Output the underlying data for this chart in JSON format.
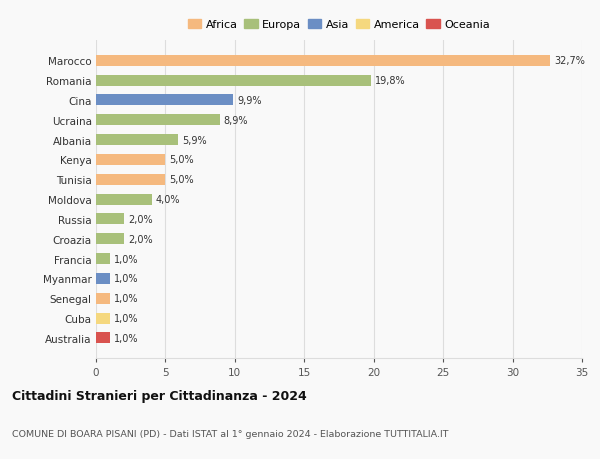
{
  "countries": [
    "Marocco",
    "Romania",
    "Cina",
    "Ucraina",
    "Albania",
    "Kenya",
    "Tunisia",
    "Moldova",
    "Russia",
    "Croazia",
    "Francia",
    "Myanmar",
    "Senegal",
    "Cuba",
    "Australia"
  ],
  "values": [
    32.7,
    19.8,
    9.9,
    8.9,
    5.9,
    5.0,
    5.0,
    4.0,
    2.0,
    2.0,
    1.0,
    1.0,
    1.0,
    1.0,
    1.0
  ],
  "labels": [
    "32,7%",
    "19,8%",
    "9,9%",
    "8,9%",
    "5,9%",
    "5,0%",
    "5,0%",
    "4,0%",
    "2,0%",
    "2,0%",
    "1,0%",
    "1,0%",
    "1,0%",
    "1,0%",
    "1,0%"
  ],
  "continents": [
    "Africa",
    "Europa",
    "Asia",
    "Europa",
    "Europa",
    "Africa",
    "Africa",
    "Europa",
    "Europa",
    "Europa",
    "Europa",
    "Asia",
    "Africa",
    "America",
    "Oceania"
  ],
  "continent_colors": {
    "Africa": "#F5B97F",
    "Europa": "#A8C07A",
    "Asia": "#6B8EC4",
    "America": "#F5D87F",
    "Oceania": "#D9534F"
  },
  "legend_order": [
    "Africa",
    "Europa",
    "Asia",
    "America",
    "Oceania"
  ],
  "title": "Cittadini Stranieri per Cittadinanza - 2024",
  "subtitle": "COMUNE DI BOARA PISANI (PD) - Dati ISTAT al 1° gennaio 2024 - Elaborazione TUTTITALIA.IT",
  "xlim": [
    0,
    35
  ],
  "xticks": [
    0,
    5,
    10,
    15,
    20,
    25,
    30,
    35
  ],
  "bg_color": "#f9f9f9",
  "grid_color": "#dddddd"
}
